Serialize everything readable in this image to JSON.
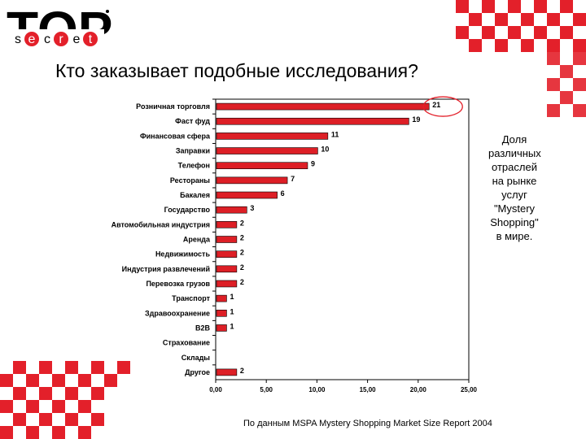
{
  "logo": {
    "big_text": "TOP",
    "small_letters": [
      "s",
      "e",
      "c",
      "r",
      "e",
      "t"
    ]
  },
  "slide": {
    "title": "Кто заказывает подобные исследования?",
    "side_note": "Доля различных отраслей на рынке услуг \"Mystery Shopping\" в мире.",
    "source": "По данным MSPA Mystery Shopping Market Size Report 2004"
  },
  "colors": {
    "bar": "#dd1f26",
    "accent": "#e3202a",
    "checker": "#e3202a",
    "highlight": "#e3202a"
  },
  "chart_data": {
    "type": "bar",
    "orientation": "horizontal",
    "categories": [
      "Розничная торговля",
      "Фаст фуд",
      "Финансовая сфера",
      "Заправки",
      "Телефон",
      "Рестораны",
      "Бакалея",
      "Государство",
      "Автомобильная индустрия",
      "Аренда",
      "Недвижимость",
      "Индустрия развлечений",
      "Перевозка грузов",
      "Транспорт",
      "Здравоохранение",
      "B2B",
      "Страхование",
      "Склады",
      "Другое"
    ],
    "values": [
      21,
      19,
      11,
      10,
      9,
      7,
      6,
      3,
      2,
      2,
      2,
      2,
      2,
      1,
      1,
      1,
      null,
      null,
      2
    ],
    "value_labels": [
      "21",
      "19",
      "11",
      "10",
      "9",
      "7",
      "6",
      "3",
      "2",
      "2",
      "2",
      "2",
      "2",
      "1",
      "1",
      "1",
      "",
      "",
      "2"
    ],
    "xticks": [
      "0,00",
      "5,00",
      "10,00",
      "15,00",
      "20,00",
      "25,00"
    ],
    "xlim": [
      0,
      25
    ],
    "title": "",
    "xlabel": "",
    "ylabel": "",
    "grid": false,
    "highlighted_category": "Розничная торговля"
  }
}
